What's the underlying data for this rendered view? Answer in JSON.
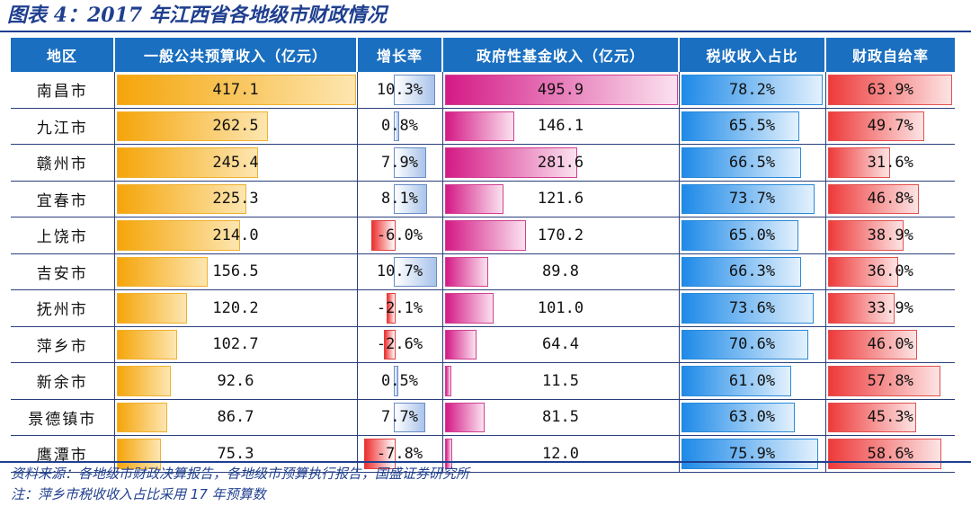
{
  "title": "图表 4：2017 年江西省各地级市财政情况",
  "headers": [
    "地区",
    "一般公共预算收入（亿元）",
    "增长率",
    "政府性基金收入（亿元）",
    "税收收入占比",
    "财政自给率"
  ],
  "rows": [
    {
      "region": "南昌市",
      "income": "417.1",
      "growth": "10.3%",
      "fund": "495.9",
      "tax": "78.2%",
      "self": "63.9%"
    },
    {
      "region": "九江市",
      "income": "262.5",
      "growth": "0.8%",
      "fund": "146.1",
      "tax": "65.5%",
      "self": "49.7%"
    },
    {
      "region": "赣州市",
      "income": "245.4",
      "growth": "7.9%",
      "fund": "281.6",
      "tax": "66.5%",
      "self": "31.6%"
    },
    {
      "region": "宜春市",
      "income": "225.3",
      "growth": "8.1%",
      "fund": "121.6",
      "tax": "73.7%",
      "self": "46.8%"
    },
    {
      "region": "上饶市",
      "income": "214.0",
      "growth": "-6.0%",
      "fund": "170.2",
      "tax": "65.0%",
      "self": "38.9%"
    },
    {
      "region": "吉安市",
      "income": "156.5",
      "growth": "10.7%",
      "fund": "89.8",
      "tax": "66.3%",
      "self": "36.0%"
    },
    {
      "region": "抚州市",
      "income": "120.2",
      "growth": "-2.1%",
      "fund": "101.0",
      "tax": "73.6%",
      "self": "33.9%"
    },
    {
      "region": "萍乡市",
      "income": "102.7",
      "growth": "-2.6%",
      "fund": "64.4",
      "tax": "70.6%",
      "self": "46.0%"
    },
    {
      "region": "新余市",
      "income": "92.6",
      "growth": "0.5%",
      "fund": "11.5",
      "tax": "61.0%",
      "self": "57.8%"
    },
    {
      "region": "景德镇市",
      "income": "86.7",
      "growth": "7.7%",
      "fund": "81.5",
      "tax": "63.0%",
      "self": "45.3%"
    },
    {
      "region": "鹰潭市",
      "income": "75.3",
      "growth": "-7.8%",
      "fund": "12.0",
      "tax": "75.9%",
      "self": "58.6%"
    }
  ],
  "source": "资料来源：各地级市财政决算报告，各地级市预算执行报告，国盛证券研究所",
  "note": "注：萍乡市税收收入占比采用 17 年预算数",
  "colors": {
    "header_bg": "#1a6fc0",
    "title": "#1f3f8f",
    "income_bar": "#f5a50a",
    "fund_bar": "#d41a86",
    "tax_bar": "#1e8ae8",
    "self_bar": "#ee3a3a",
    "growth_pos_bar": "#a9c3ea",
    "growth_neg_bar": "#ee3030"
  }
}
